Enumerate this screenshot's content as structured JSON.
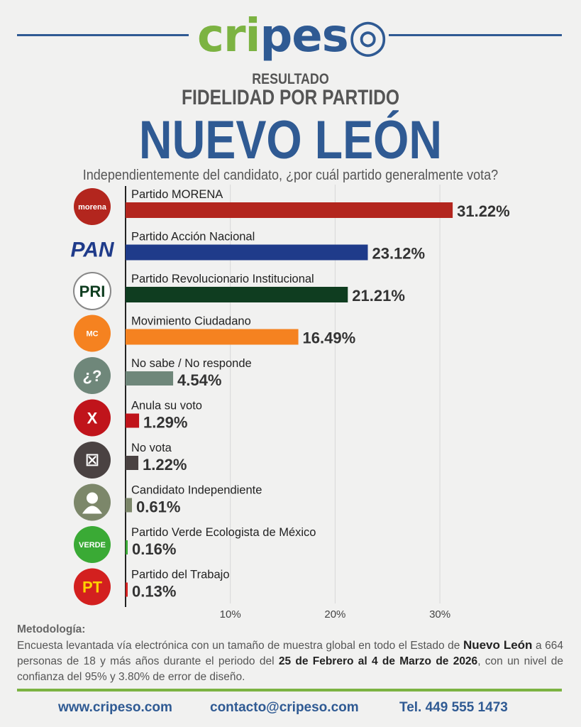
{
  "header": {
    "logo": "cripeso",
    "kicker": "RESULTADO",
    "title": "FIDELIDAD POR PARTIDO",
    "region": "NUEVO LEÓN",
    "question": "Independientemente del candidato, ¿por cuál partido generalmente vota?"
  },
  "chart_data": {
    "type": "bar",
    "orientation": "horizontal",
    "categories": [
      "Partido MORENA",
      "Partido Acción Nacional",
      "Partido Revolucionario Institucional",
      "Movimiento Ciudadano",
      "No sabe / No responde",
      "Anula su voto",
      "No vota",
      "Candidato Independiente",
      "Partido Verde Ecologista de México",
      "Partido del Trabajo"
    ],
    "values": [
      31.22,
      23.12,
      21.21,
      16.49,
      4.54,
      1.29,
      1.22,
      0.61,
      0.16,
      0.13
    ],
    "labels": [
      "31.22%",
      "23.12%",
      "21.21%",
      "16.49%",
      "4.54%",
      "1.29%",
      "1.22%",
      "0.61%",
      "0.16%",
      "0.13%"
    ],
    "colors": [
      "#b3261e",
      "#1f3b8a",
      "#0f3d20",
      "#f58220",
      "#6f877a",
      "#c0141b",
      "#4a4242",
      "#7c876a",
      "#3aaa35",
      "#d3201f"
    ],
    "icons": [
      "morena-logo",
      "pan-logo",
      "pri-logo",
      "mc-logo",
      "question-icon",
      "x-icon",
      "ballot-icon",
      "person-icon",
      "verde-logo",
      "pt-logo"
    ],
    "icon_text": [
      "morena",
      "PAN",
      "PRI",
      "MC",
      "¿?",
      "X",
      "☒",
      "",
      "VERDE",
      "PT"
    ],
    "xticks": [
      "10%",
      "20%",
      "30%"
    ],
    "xtick_values": [
      10,
      20,
      30
    ],
    "xlim": [
      0,
      32
    ],
    "grid": true
  },
  "methodology": {
    "heading": "Metodología:",
    "p1": "Encuesta levantada vía electrónica con un tamaño de muestra global en todo el Estado de ",
    "b1": "Nuevo León",
    "p2": " a 664 personas de 18 y más años durante el periodo del ",
    "b2": "25 de Febrero al 4 de Marzo de 2026",
    "p3": ", con un nivel de confianza del 95% y 3.80% de error de diseño."
  },
  "footer": {
    "web": "www.cripeso.com",
    "email": "contacto@cripeso.com",
    "phone": "Tel. 449 555 1473"
  }
}
